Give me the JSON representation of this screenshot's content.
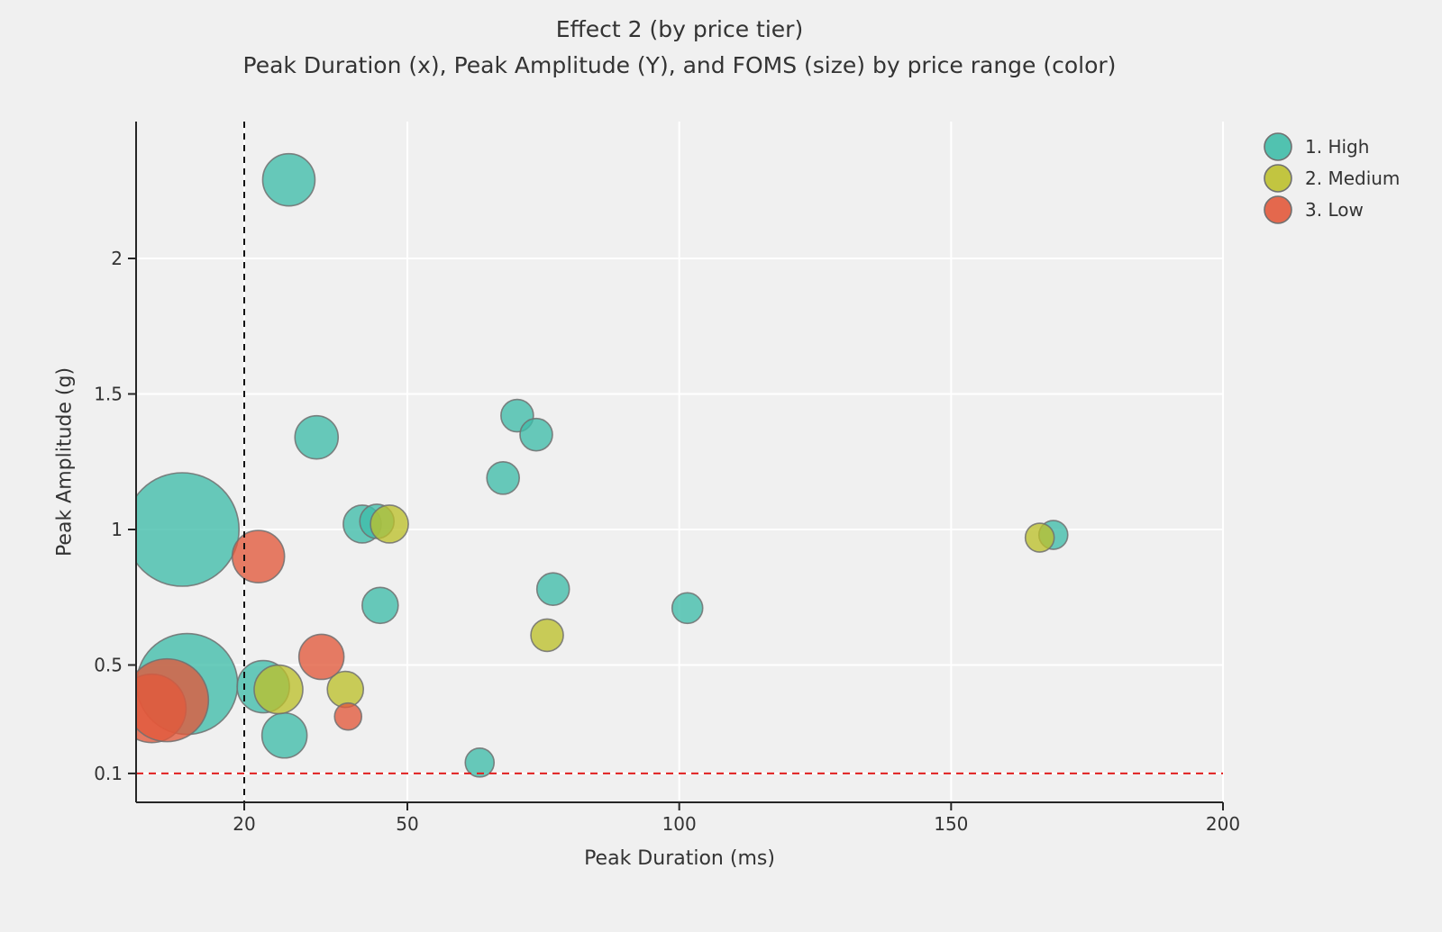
{
  "chart": {
    "title": "Effect 2 (by price tier)",
    "subtitle": "Peak Duration (x), Peak Amplitude (Y), and FOMS (size) by price range (color)",
    "xlabel": "Peak Duration (ms)",
    "ylabel": "Peak Amplitude (g)"
  },
  "legend": {
    "items": [
      {
        "label": "1. High",
        "color": "#3FBDA9"
      },
      {
        "label": "2. Medium",
        "color": "#BCC02C"
      },
      {
        "label": "3. Low",
        "color": "#E2593B"
      }
    ]
  },
  "colors": {
    "background": "#f0f0f0",
    "grid": "#ffffff",
    "spine": "#262626",
    "text": "#333333",
    "bubble_edge": "#707070",
    "vline": "#111111",
    "hline": "#e01f1f"
  },
  "chart_data": {
    "type": "scatter",
    "title": "Effect 2 (by price tier)",
    "subtitle": "Peak Duration (x), Peak Amplitude (Y), and FOMS (size) by price range (color)",
    "xlabel": "Peak Duration (ms)",
    "ylabel": "Peak Amplitude (g)",
    "size_encoding": "FOMS (bubble area; pixel radius given as r)",
    "xlim": [
      0,
      200
    ],
    "ylim": [
      0,
      2.5
    ],
    "grid": true,
    "legend_position": "upper right, outside plot",
    "xticks": [
      {
        "v": 20,
        "label": "20"
      },
      {
        "v": 50,
        "label": "50"
      },
      {
        "v": 100,
        "label": "100"
      },
      {
        "v": 150,
        "label": "150"
      },
      {
        "v": 200,
        "label": "200"
      }
    ],
    "yticks": [
      {
        "v": 0.1,
        "label": "0.1"
      },
      {
        "v": 0.5,
        "label": "0.5"
      },
      {
        "v": 1,
        "label": "1"
      },
      {
        "v": 1.5,
        "label": "1.5"
      },
      {
        "v": 2,
        "label": "2"
      }
    ],
    "reference_lines": [
      {
        "type": "vline",
        "x": 20,
        "style": "dashed",
        "color": "#111111"
      },
      {
        "type": "hline",
        "y": 0.1,
        "style": "dashed",
        "color": "#e01f1f"
      }
    ],
    "series": [
      {
        "name": "1. High",
        "color": "#3FBDA9",
        "points": [
          {
            "x": 8.6,
            "y": 1.0,
            "r": 63
          },
          {
            "x": 9.5,
            "y": 0.43,
            "r": 56
          },
          {
            "x": 28.2,
            "y": 2.29,
            "r": 29
          },
          {
            "x": 33.3,
            "y": 1.34,
            "r": 24
          },
          {
            "x": 41.7,
            "y": 1.02,
            "r": 21
          },
          {
            "x": 44.4,
            "y": 1.03,
            "r": 19
          },
          {
            "x": 70.2,
            "y": 1.42,
            "r": 18
          },
          {
            "x": 73.7,
            "y": 1.35,
            "r": 18
          },
          {
            "x": 67.6,
            "y": 1.19,
            "r": 18
          },
          {
            "x": 76.8,
            "y": 0.78,
            "r": 18
          },
          {
            "x": 45.0,
            "y": 0.72,
            "r": 20
          },
          {
            "x": 101.5,
            "y": 0.71,
            "r": 17
          },
          {
            "x": 168.8,
            "y": 0.98,
            "r": 16
          },
          {
            "x": 23.5,
            "y": 0.42,
            "r": 29
          },
          {
            "x": 27.4,
            "y": 0.24,
            "r": 25
          },
          {
            "x": 63.3,
            "y": 0.14,
            "r": 16
          }
        ]
      },
      {
        "name": "2. Medium",
        "color": "#BCC02C",
        "points": [
          {
            "x": 46.7,
            "y": 1.02,
            "r": 21
          },
          {
            "x": 166.3,
            "y": 0.97,
            "r": 16
          },
          {
            "x": 75.7,
            "y": 0.61,
            "r": 18
          },
          {
            "x": 26.3,
            "y": 0.41,
            "r": 27
          },
          {
            "x": 38.6,
            "y": 0.41,
            "r": 20
          }
        ]
      },
      {
        "name": "3. Low",
        "color": "#E2593B",
        "points": [
          {
            "x": 3.0,
            "y": 0.34,
            "r": 38
          },
          {
            "x": 5.8,
            "y": 0.37,
            "r": 46
          },
          {
            "x": 22.6,
            "y": 0.9,
            "r": 29
          },
          {
            "x": 34.2,
            "y": 0.53,
            "r": 25
          },
          {
            "x": 39.1,
            "y": 0.31,
            "r": 15
          }
        ]
      }
    ]
  }
}
